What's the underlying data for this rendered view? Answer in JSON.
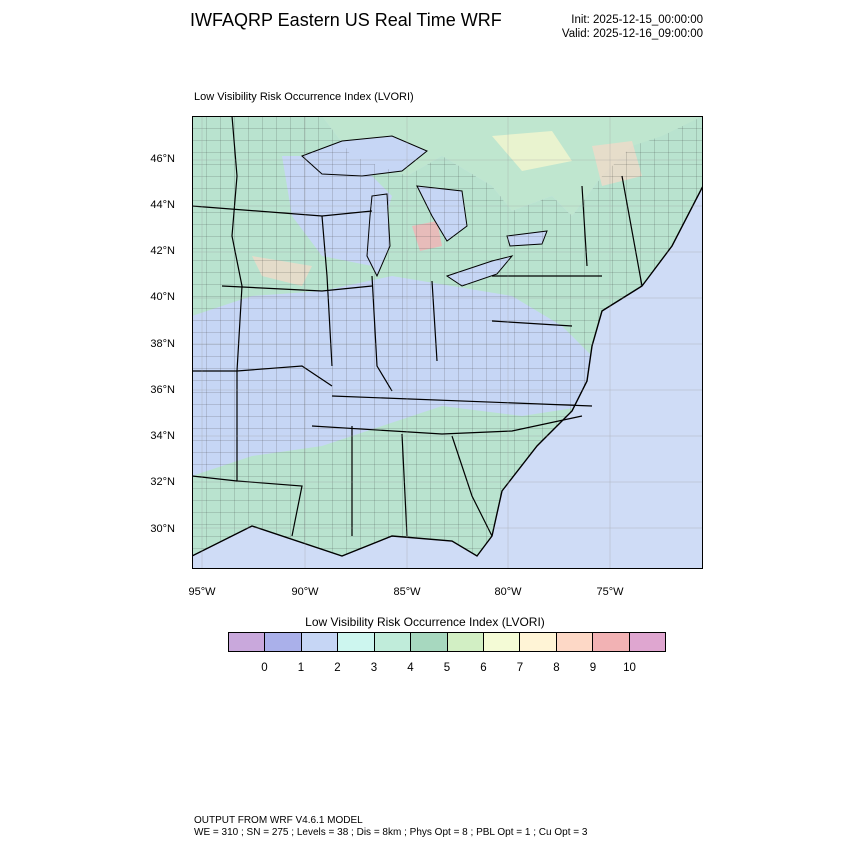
{
  "header": {
    "title": "IWFAQRP Eastern US Real Time WRF",
    "init": "Init: 2025-12-15_00:00:00",
    "valid": "Valid: 2025-12-16_09:00:00"
  },
  "map": {
    "subtitle": "Low Visibility Risk Occurrence Index   (LVORI)",
    "lat_labels": [
      "46°N",
      "44°N",
      "42°N",
      "40°N",
      "38°N",
      "36°N",
      "34°N",
      "32°N",
      "30°N"
    ],
    "lon_labels": [
      "95°W",
      "90°W",
      "85°W",
      "80°W",
      "75°W"
    ],
    "colors": {
      "land_low": "#c6d6f5",
      "land_mid": "#b9e3cf",
      "land_high": "#e9f3cf",
      "ocean": "#cfdcf6",
      "great_lakes": "#c6d6f5"
    }
  },
  "colorbar": {
    "title": "Low Visibility Risk Occurrence Index  (LVORI)",
    "labels": [
      "0",
      "1",
      "2",
      "3",
      "4",
      "5",
      "6",
      "7",
      "8",
      "9",
      "10"
    ],
    "colors": [
      "#c9a8dc",
      "#aab0ea",
      "#c6d6f5",
      "#cdf6ef",
      "#c0ecda",
      "#a7d8bf",
      "#d2efc4",
      "#f4fbd6",
      "#fff4d6",
      "#fdd8c6",
      "#f2b2b4",
      "#dfa6d0"
    ]
  },
  "footer": {
    "line1": "OUTPUT FROM WRF V4.6.1 MODEL",
    "line2": "WE = 310 ; SN = 275 ; Levels = 38 ; Dis = 8km ; Phys Opt = 8 ; PBL Opt = 1 ; Cu Opt = 3"
  }
}
